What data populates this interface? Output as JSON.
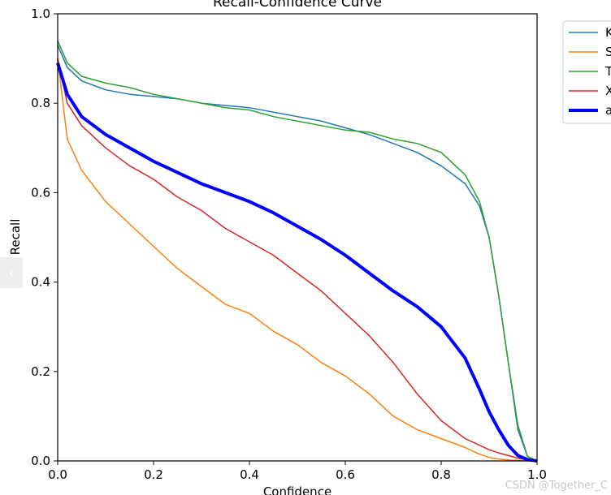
{
  "nav": {
    "prev_icon": "‹"
  },
  "watermark": "CSDN @Together_C",
  "chart_data": {
    "type": "line",
    "title": "Recall-Confidence Curve",
    "xlabel": "Confidence",
    "ylabel": "Recall",
    "xlim": [
      0,
      1
    ],
    "ylim": [
      0,
      1
    ],
    "xticks": [
      "0.0",
      "0.2",
      "0.4",
      "0.6",
      "0.8",
      "1.0"
    ],
    "yticks": [
      "0.0",
      "0.2",
      "0.4",
      "0.6",
      "0.8",
      "1.0"
    ],
    "grid": false,
    "legend_position": "outside-top-right",
    "x": [
      0,
      0.02,
      0.05,
      0.1,
      0.15,
      0.2,
      0.25,
      0.3,
      0.35,
      0.4,
      0.45,
      0.5,
      0.55,
      0.6,
      0.65,
      0.7,
      0.75,
      0.8,
      0.85,
      0.88,
      0.9,
      0.92,
      0.94,
      0.96,
      0.98,
      1.0
    ],
    "series": [
      {
        "name": "K",
        "color": "#1f77b4",
        "width": 1.5,
        "values": [
          0.93,
          0.88,
          0.85,
          0.83,
          0.82,
          0.815,
          0.81,
          0.8,
          0.795,
          0.79,
          0.78,
          0.77,
          0.76,
          0.745,
          0.73,
          0.71,
          0.69,
          0.66,
          0.62,
          0.57,
          0.5,
          0.37,
          0.22,
          0.07,
          0.01,
          0.0
        ]
      },
      {
        "name": "S",
        "color": "#ff7f0e",
        "width": 1.5,
        "values": [
          0.9,
          0.72,
          0.65,
          0.58,
          0.53,
          0.48,
          0.43,
          0.39,
          0.35,
          0.33,
          0.29,
          0.26,
          0.22,
          0.19,
          0.15,
          0.1,
          0.07,
          0.05,
          0.03,
          0.015,
          0.008,
          0.004,
          0.002,
          0.001,
          0.0,
          0.0
        ]
      },
      {
        "name": "T",
        "color": "#2ca02c",
        "width": 1.5,
        "values": [
          0.94,
          0.89,
          0.86,
          0.845,
          0.835,
          0.82,
          0.81,
          0.8,
          0.79,
          0.785,
          0.77,
          0.76,
          0.75,
          0.74,
          0.735,
          0.72,
          0.71,
          0.69,
          0.64,
          0.58,
          0.5,
          0.37,
          0.22,
          0.08,
          0.01,
          0.0
        ]
      },
      {
        "name": "X",
        "color": "#d62728",
        "width": 1.5,
        "values": [
          0.9,
          0.8,
          0.75,
          0.7,
          0.66,
          0.63,
          0.59,
          0.56,
          0.52,
          0.49,
          0.46,
          0.42,
          0.38,
          0.33,
          0.28,
          0.22,
          0.15,
          0.09,
          0.05,
          0.035,
          0.025,
          0.018,
          0.012,
          0.006,
          0.002,
          0.0
        ]
      },
      {
        "name": "a",
        "color": "#0000ff",
        "width": 4,
        "values": [
          0.89,
          0.82,
          0.77,
          0.73,
          0.7,
          0.67,
          0.645,
          0.62,
          0.6,
          0.58,
          0.555,
          0.525,
          0.495,
          0.46,
          0.42,
          0.38,
          0.345,
          0.3,
          0.23,
          0.16,
          0.11,
          0.07,
          0.035,
          0.012,
          0.003,
          0.0
        ]
      }
    ]
  }
}
